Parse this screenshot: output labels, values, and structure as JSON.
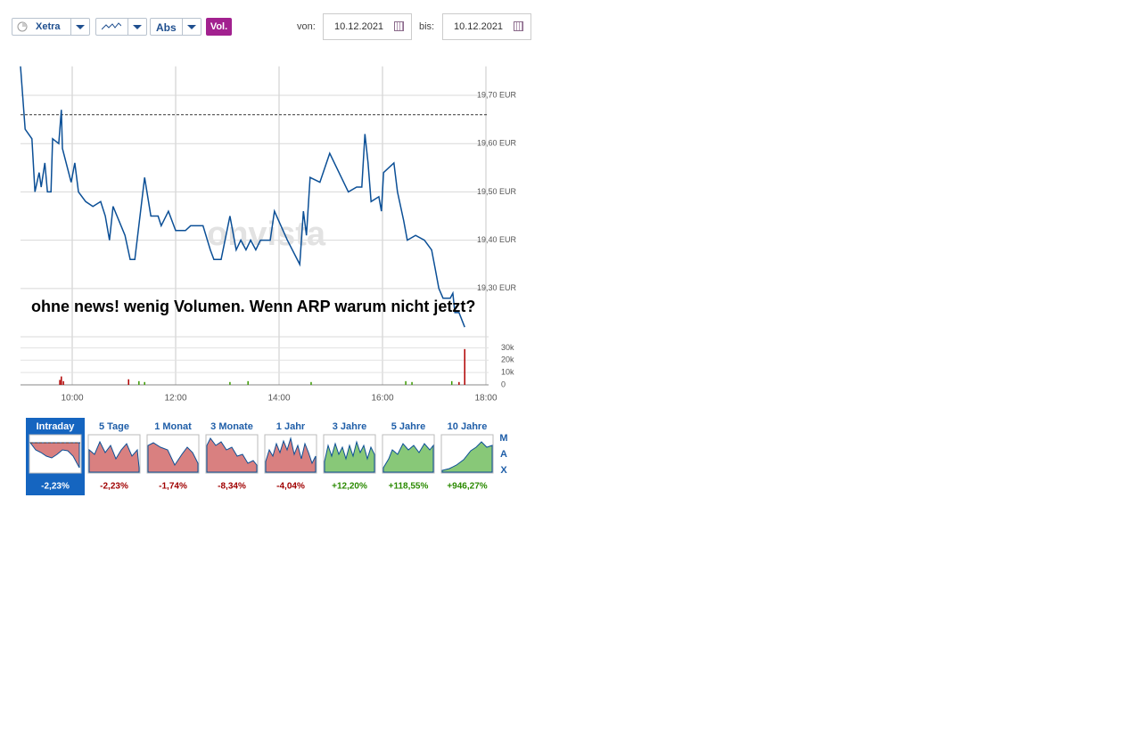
{
  "toolbar": {
    "exchange": "Xetra",
    "mode": "Abs",
    "volume": "Vol.",
    "from_label": "von:",
    "from": "10.12.2021",
    "to_label": "bis:",
    "to": "10.12.2021"
  },
  "chart_data": [
    {
      "type": "line",
      "annotation": "ohne news! wenig Volumen. Wenn ARP warum nicht jetzt?",
      "watermark": "onvista",
      "color": "#0b4f96",
      "x": [
        9.0,
        9.09,
        9.22,
        9.28,
        9.36,
        9.4,
        9.47,
        9.52,
        9.59,
        9.62,
        9.74,
        9.79,
        9.81,
        9.98,
        10.05,
        10.12,
        10.26,
        10.4,
        10.55,
        10.64,
        10.72,
        10.79,
        11.02,
        11.12,
        11.21,
        11.4,
        11.52,
        11.66,
        11.72,
        11.86,
        12.0,
        12.19,
        12.29,
        12.53,
        12.67,
        12.74,
        12.88,
        13.05,
        13.17,
        13.26,
        13.36,
        13.45,
        13.55,
        13.64,
        13.83,
        13.91,
        14.16,
        14.4,
        14.47,
        14.53,
        14.6,
        14.79,
        14.98,
        15.34,
        15.5,
        15.6,
        15.66,
        15.72,
        15.78,
        15.93,
        15.98,
        16.02,
        16.22,
        16.29,
        16.41,
        16.48,
        16.64,
        16.81,
        16.95,
        17.02,
        17.09,
        17.17,
        17.31,
        17.36,
        17.4,
        17.48,
        17.59
      ],
      "values": [
        19.76,
        19.63,
        19.61,
        19.5,
        19.54,
        19.51,
        19.56,
        19.5,
        19.5,
        19.61,
        19.6,
        19.67,
        19.59,
        19.52,
        19.56,
        19.5,
        19.48,
        19.47,
        19.48,
        19.45,
        19.4,
        19.47,
        19.41,
        19.36,
        19.36,
        19.53,
        19.45,
        19.45,
        19.43,
        19.46,
        19.42,
        19.42,
        19.43,
        19.43,
        19.38,
        19.36,
        19.36,
        19.45,
        19.38,
        19.4,
        19.38,
        19.4,
        19.38,
        19.4,
        19.4,
        19.46,
        19.4,
        19.35,
        19.46,
        19.41,
        19.53,
        19.52,
        19.58,
        19.5,
        19.51,
        19.51,
        19.62,
        19.56,
        19.48,
        19.49,
        19.46,
        19.54,
        19.56,
        19.5,
        19.44,
        19.4,
        19.41,
        19.4,
        19.38,
        19.34,
        19.3,
        19.28,
        19.28,
        19.29,
        19.25,
        19.25,
        19.22
      ],
      "reference_line": 19.66,
      "xlim": [
        9,
        18
      ],
      "xticks": [
        {
          "value": 10,
          "label": "10:00"
        },
        {
          "value": 12,
          "label": "12:00"
        },
        {
          "value": 14,
          "label": "14:00"
        },
        {
          "value": 16,
          "label": "16:00"
        },
        {
          "value": 18,
          "label": "18:00"
        }
      ],
      "ylim": [
        19.21,
        19.76
      ],
      "yticks": [
        {
          "value": 19.3,
          "label": "19,30 EUR"
        },
        {
          "value": 19.4,
          "label": "19,40 EUR"
        },
        {
          "value": 19.5,
          "label": "19,50 EUR"
        },
        {
          "value": 19.6,
          "label": "19,60 EUR"
        },
        {
          "value": 19.7,
          "label": "19,70 EUR"
        }
      ],
      "grid": true
    },
    {
      "type": "bar",
      "x": [
        9.79,
        9.76,
        9.83,
        11.09,
        11.29,
        11.4,
        13.05,
        13.4,
        14.62,
        16.45,
        16.57,
        17.34,
        17.48,
        17.59
      ],
      "values": [
        6800,
        4000,
        3000,
        4500,
        3000,
        2300,
        2300,
        3000,
        2300,
        3000,
        2300,
        3000,
        2300,
        29000
      ],
      "colors": [
        "#b00000",
        "#b00000",
        "#b00000",
        "#b00000",
        "#3a9a00",
        "#3a9a00",
        "#3a9a00",
        "#3a9a00",
        "#3a9a00",
        "#3a9a00",
        "#3a9a00",
        "#3a9a00",
        "#b00000",
        "#b00000"
      ],
      "xlim": [
        9,
        18
      ],
      "ylim": [
        0,
        39000
      ],
      "yticks": [
        0,
        {
          "value": 10000,
          "label": "10k"
        },
        {
          "value": 20000,
          "label": "20k"
        },
        {
          "value": 30000,
          "label": "30k"
        }
      ],
      "grid": true
    }
  ],
  "periods": [
    {
      "label": "Intraday",
      "change": "-2,23%"
    },
    {
      "label": "5 Tage",
      "change": "-2,23%"
    },
    {
      "label": "1 Monat",
      "change": "-1,74%"
    },
    {
      "label": "3 Monate",
      "change": "-8,34%"
    },
    {
      "label": "1 Jahr",
      "change": "-4,04%"
    },
    {
      "label": "3 Jahre",
      "change": "+12,20%"
    },
    {
      "label": "5 Jahre",
      "change": "+118,55%"
    },
    {
      "label": "10 Jahre",
      "change": "+946,27%"
    }
  ],
  "max_label": [
    "M",
    "A",
    "X"
  ]
}
